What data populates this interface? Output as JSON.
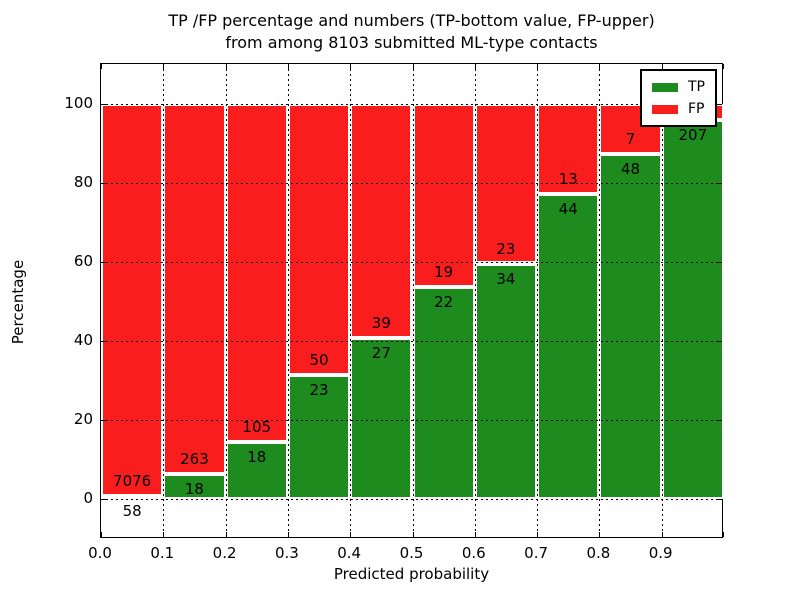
{
  "title": {
    "line1": "TP /FP percentage and numbers (TP-bottom value, FP-upper)",
    "line2": "from among 8103 submitted ML-type contacts"
  },
  "axes": {
    "xlabel": "Predicted probability",
    "ylabel": "Percentage",
    "x_tick_labels": [
      "0.0",
      "0.1",
      "0.2",
      "0.3",
      "0.4",
      "0.5",
      "0.6",
      "0.7",
      "0.8",
      "0.9"
    ],
    "y_tick_labels": [
      "0",
      "20",
      "40",
      "60",
      "80",
      "100"
    ],
    "y_tick_values": [
      0,
      20,
      40,
      60,
      80,
      100
    ],
    "xlim": [
      0.0,
      1.0
    ],
    "ylim": [
      -10,
      110
    ],
    "grid": "dotted"
  },
  "legend": {
    "position": "upper-right",
    "items": [
      {
        "label": "TP",
        "color": "#1e8b1e"
      },
      {
        "label": "FP",
        "color": "#f91d1d"
      }
    ]
  },
  "colors": {
    "tp": "#1e8b1e",
    "fp": "#f91d1d",
    "bar_edge": "#ffffff",
    "grid": "#000000",
    "text": "#000000",
    "background": "#ffffff"
  },
  "chart_data": {
    "type": "bar",
    "stacked": true,
    "title": "TP /FP percentage and numbers (TP-bottom value, FP-upper) from among 8103 submitted ML-type contacts",
    "xlabel": "Predicted probability",
    "ylabel": "Percentage",
    "categories": [
      "0.0-0.1",
      "0.1-0.2",
      "0.2-0.3",
      "0.3-0.4",
      "0.4-0.5",
      "0.5-0.6",
      "0.6-0.7",
      "0.7-0.8",
      "0.8-0.9",
      "0.9-1.0"
    ],
    "series": [
      {
        "name": "TP",
        "counts": [
          58,
          18,
          18,
          23,
          27,
          22,
          34,
          44,
          48,
          207
        ]
      },
      {
        "name": "FP",
        "counts": [
          7076,
          263,
          105,
          50,
          39,
          19,
          23,
          13,
          7,
          null
        ]
      }
    ],
    "tp_percent": [
      0.8,
      6.4,
      14.6,
      31.5,
      40.9,
      53.7,
      59.6,
      77.2,
      87.3,
      95.8
    ],
    "fp_label_note": "FP count label of last bar hidden behind legend",
    "total_note_visible": "8103",
    "ylim": [
      -10,
      110
    ]
  }
}
